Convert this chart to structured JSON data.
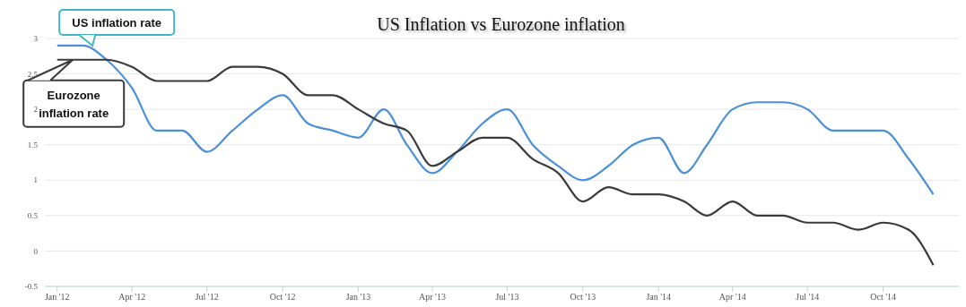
{
  "chart_data": {
    "type": "line",
    "title": "US Inflation vs Eurozone inflation",
    "x": [
      "2012-01",
      "2012-02",
      "2012-03",
      "2012-04",
      "2012-05",
      "2012-06",
      "2012-07",
      "2012-08",
      "2012-09",
      "2012-10",
      "2012-11",
      "2012-12",
      "2013-01",
      "2013-02",
      "2013-03",
      "2013-04",
      "2013-05",
      "2013-06",
      "2013-07",
      "2013-08",
      "2013-09",
      "2013-10",
      "2013-11",
      "2013-12",
      "2014-01",
      "2014-02",
      "2014-03",
      "2014-04",
      "2014-05",
      "2014-06",
      "2014-07",
      "2014-08",
      "2014-09",
      "2014-10",
      "2014-11",
      "2014-12"
    ],
    "series": [
      {
        "name": "US inflation rate",
        "color": "#4a90d9",
        "values": [
          2.9,
          2.9,
          2.7,
          2.3,
          1.7,
          1.7,
          1.4,
          1.7,
          2.0,
          2.2,
          1.8,
          1.7,
          1.6,
          2.0,
          1.5,
          1.1,
          1.4,
          1.8,
          2.0,
          1.5,
          1.2,
          1.0,
          1.2,
          1.5,
          1.6,
          1.1,
          1.5,
          2.0,
          2.1,
          2.1,
          2.0,
          1.7,
          1.7,
          1.7,
          1.3,
          0.8
        ]
      },
      {
        "name": "Eurozone inflation rate",
        "color": "#3a3a3a",
        "values": [
          2.7,
          2.7,
          2.7,
          2.6,
          2.4,
          2.4,
          2.4,
          2.6,
          2.6,
          2.5,
          2.2,
          2.2,
          2.0,
          1.8,
          1.7,
          1.2,
          1.4,
          1.6,
          1.6,
          1.3,
          1.1,
          0.7,
          0.9,
          0.8,
          0.8,
          0.7,
          0.5,
          0.7,
          0.5,
          0.5,
          0.4,
          0.4,
          0.3,
          0.4,
          0.3,
          -0.2
        ]
      }
    ],
    "xlim": [
      "2011-12-17",
      "2015-01-01"
    ],
    "xticks": [
      {
        "value": "2012-01",
        "label": "Jan '12"
      },
      {
        "value": "2012-04",
        "label": "Apr '12"
      },
      {
        "value": "2012-07",
        "label": "Jul '12"
      },
      {
        "value": "2012-10",
        "label": "Oct '12"
      },
      {
        "value": "2013-01",
        "label": "Jan '13"
      },
      {
        "value": "2013-04",
        "label": "Apr '13"
      },
      {
        "value": "2013-07",
        "label": "Jul '13"
      },
      {
        "value": "2013-10",
        "label": "Oct '13"
      },
      {
        "value": "2014-01",
        "label": "Jan '14"
      },
      {
        "value": "2014-04",
        "label": "Apr '14"
      },
      {
        "value": "2014-07",
        "label": "Jul '14"
      },
      {
        "value": "2014-10",
        "label": "Oct '14"
      }
    ],
    "ylim": [
      -0.5,
      3
    ],
    "yticks": [
      -0.5,
      0,
      0.5,
      1,
      1.5,
      2,
      2.5,
      3
    ],
    "grid": "y",
    "legend": "top left",
    "marker": "none",
    "line_style": "solid"
  }
}
